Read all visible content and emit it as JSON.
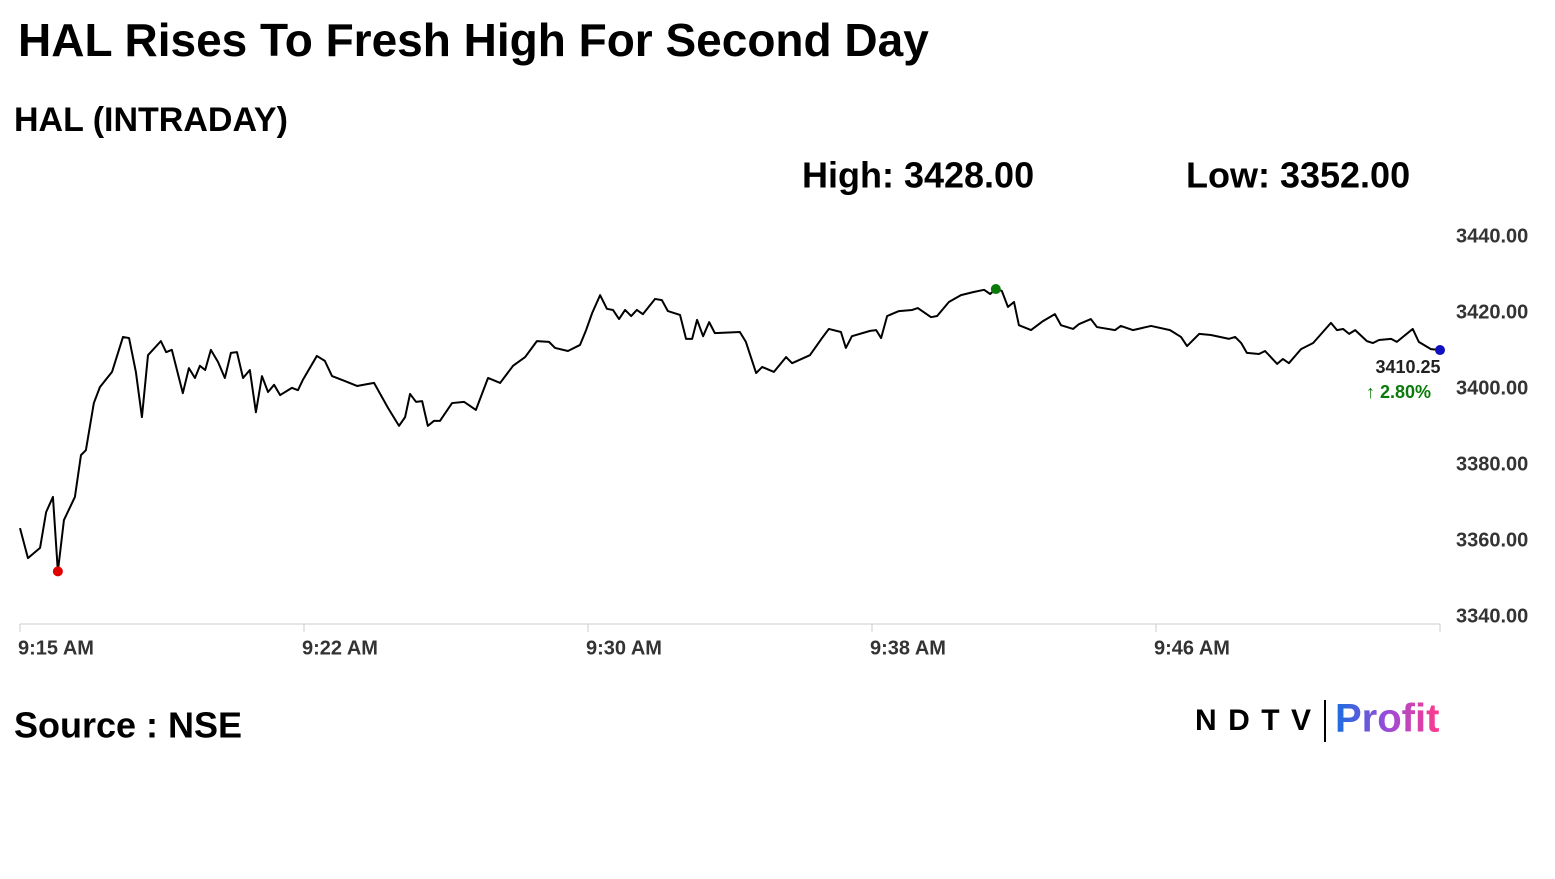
{
  "chart_data": {
    "type": "line",
    "title": "HAL Rises To Fresh High For Second Day",
    "subtitle": "HAL (INTRADAY)",
    "high_label": "High: 3428.00",
    "low_label": "Low: 3352.00",
    "source": "Source : NSE",
    "brand": [
      "NDTV",
      "Profit"
    ],
    "change_label": "2.80%",
    "color": "#000000",
    "low_color": "#e00000",
    "high_color": "#0a7a0a",
    "last_color": "#1010c0",
    "change_color": "#0a7a0a",
    "xlim": [
      555,
      592.5
    ],
    "xticks": [
      {
        "value": 555,
        "label": "9:15 AM"
      },
      {
        "value": 562.5,
        "label": "9:22 AM"
      },
      {
        "value": 570,
        "label": "9:30 AM"
      },
      {
        "value": 577.5,
        "label": "9:38 AM"
      },
      {
        "value": 585,
        "label": "9:46 AM"
      }
    ],
    "ylim": [
      3340,
      3440
    ],
    "yticks": [
      {
        "value": 3340,
        "label": "3340.00"
      },
      {
        "value": 3360,
        "label": "3360.00"
      },
      {
        "value": 3380,
        "label": "3380.00"
      },
      {
        "value": 3400,
        "label": "3400.00"
      },
      {
        "value": 3420,
        "label": "3420.00"
      },
      {
        "value": 3440,
        "label": "3440.00"
      }
    ],
    "x": [
      555.0,
      555.21,
      555.53,
      555.69,
      555.87,
      556.0,
      556.16,
      556.45,
      556.61,
      556.74,
      556.95,
      557.11,
      557.43,
      557.72,
      557.88,
      558.06,
      558.22,
      558.38,
      558.72,
      558.86,
      559.01,
      559.3,
      559.46,
      559.62,
      559.75,
      559.89,
      560.04,
      560.23,
      560.41,
      560.57,
      560.73,
      560.89,
      561.07,
      561.23,
      561.39,
      561.55,
      561.71,
      561.87,
      562.18,
      562.34,
      562.47,
      562.84,
      563.05,
      563.24,
      563.58,
      563.9,
      564.35,
      564.72,
      565.01,
      565.17,
      565.3,
      565.46,
      565.62,
      565.77,
      565.93,
      566.09,
      566.41,
      566.73,
      567.04,
      567.36,
      567.68,
      568.02,
      568.34,
      568.65,
      568.97,
      569.13,
      569.47,
      569.79,
      569.95,
      570.11,
      570.32,
      570.5,
      570.66,
      570.82,
      570.98,
      571.14,
      571.29,
      571.45,
      571.77,
      571.95,
      572.11,
      572.43,
      572.59,
      572.75,
      572.88,
      573.04,
      573.2,
      573.35,
      574.01,
      574.17,
      574.44,
      574.6,
      574.91,
      575.23,
      575.39,
      575.86,
      576.18,
      576.36,
      576.68,
      576.81,
      576.97,
      577.45,
      577.61,
      577.74,
      577.9,
      578.21,
      578.56,
      578.71,
      579.06,
      579.22,
      579.53,
      579.85,
      580.17,
      580.46,
      580.62,
      580.77,
      580.93,
      581.09,
      581.25,
      581.38,
      581.7,
      582.02,
      582.33,
      582.49,
      582.81,
      582.97,
      583.28,
      583.44,
      583.92,
      584.07,
      584.39,
      584.87,
      585.37,
      585.66,
      585.82,
      586.14,
      586.45,
      586.93,
      587.09,
      587.25,
      587.4,
      587.72,
      587.88,
      588.2,
      588.35,
      588.51,
      588.83,
      589.15,
      589.62,
      589.78,
      589.94,
      590.1,
      590.26,
      590.57,
      590.73,
      590.89,
      591.21,
      591.36,
      591.78,
      591.94,
      592.26,
      592.5
    ],
    "values": [
      3363.4,
      3355.5,
      3358.2,
      3367.6,
      3371.6,
      3352,
      3365.5,
      3371.6,
      3382.6,
      3383.9,
      3396.3,
      3400.5,
      3404.5,
      3413.7,
      3413.4,
      3404.5,
      3392.6,
      3408.9,
      3412.6,
      3409.7,
      3410.3,
      3398.9,
      3405.5,
      3402.9,
      3406.1,
      3405.0,
      3410.3,
      3407.1,
      3402.9,
      3409.5,
      3409.7,
      3402.9,
      3405.0,
      3393.9,
      3403.4,
      3399.2,
      3401.1,
      3398.4,
      3400.3,
      3399.7,
      3402.4,
      3408.7,
      3407.4,
      3403.4,
      3402.1,
      3400.8,
      3401.6,
      3395.0,
      3390.3,
      3392.6,
      3398.7,
      3396.6,
      3396.8,
      3390.3,
      3391.6,
      3391.6,
      3396.3,
      3396.6,
      3394.5,
      3402.9,
      3401.6,
      3406.1,
      3408.4,
      3412.6,
      3412.4,
      3410.8,
      3410.0,
      3411.6,
      3415.5,
      3420.0,
      3424.7,
      3421.1,
      3420.8,
      3418.4,
      3420.8,
      3419.2,
      3420.8,
      3419.7,
      3423.7,
      3423.4,
      3420.5,
      3419.5,
      3413.2,
      3413.2,
      3418.2,
      3413.9,
      3417.6,
      3414.7,
      3415.0,
      3412.4,
      3404.2,
      3405.8,
      3404.5,
      3408.4,
      3406.8,
      3408.9,
      3413.4,
      3415.8,
      3415.0,
      3410.8,
      3413.9,
      3415.3,
      3415.5,
      3413.4,
      3419.2,
      3420.5,
      3420.8,
      3421.3,
      3418.9,
      3419.2,
      3422.9,
      3424.7,
      3425.5,
      3426.1,
      3425.0,
      3426.3,
      3425.8,
      3421.6,
      3422.9,
      3416.8,
      3415.5,
      3417.9,
      3419.7,
      3416.8,
      3415.8,
      3417.1,
      3418.4,
      3416.3,
      3415.5,
      3416.6,
      3415.5,
      3416.6,
      3415.5,
      3413.7,
      3411.3,
      3414.5,
      3414.2,
      3413.2,
      3413.7,
      3412.1,
      3409.5,
      3409.2,
      3410.0,
      3406.6,
      3407.9,
      3406.8,
      3410.5,
      3412.1,
      3417.4,
      3415.5,
      3415.8,
      3414.5,
      3415.5,
      3412.6,
      3412.1,
      3412.9,
      3413.2,
      3412.4,
      3415.8,
      3412.4,
      3410.5,
      3410.25
    ],
    "last_value_label": "3410.25"
  }
}
